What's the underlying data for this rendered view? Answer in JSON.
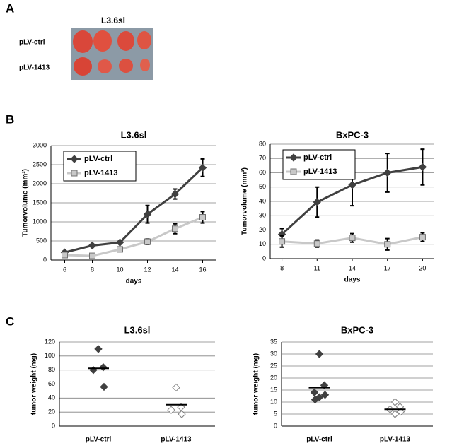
{
  "figure": {
    "panel_labels": [
      "A",
      "B",
      "C"
    ],
    "photo": {
      "title": "L3.6sl",
      "rows": [
        "pLV-ctrl",
        "pLV-1413"
      ]
    }
  },
  "chart_data": [
    {
      "type": "line",
      "title": "L3.6sl",
      "x_label": "days",
      "y_label": "Tumorvolume (mm³)",
      "x": [
        6,
        8,
        10,
        12,
        14,
        16
      ],
      "xlim": [
        5,
        17
      ],
      "xticks": [
        6,
        8,
        10,
        12,
        14,
        16
      ],
      "ylim": [
        0,
        3000
      ],
      "yticks": [
        0,
        500,
        1000,
        1500,
        2000,
        2500,
        3000
      ],
      "grid": true,
      "legend": "top-left",
      "series": [
        {
          "name": "pLV-ctrl",
          "color": "#404040",
          "marker": "diamond",
          "values": [
            200,
            380,
            460,
            1200,
            1730,
            2420
          ],
          "errors": [
            40,
            30,
            30,
            230,
            130,
            230
          ]
        },
        {
          "name": "pLV-1413",
          "color": "#c8c8c8",
          "marker": "square",
          "values": [
            130,
            110,
            280,
            480,
            820,
            1120
          ],
          "errors": [
            30,
            20,
            30,
            70,
            130,
            150
          ]
        }
      ]
    },
    {
      "type": "line",
      "title": "BxPC-3",
      "x_label": "days",
      "y_label": "Tumorvolume (mm³)",
      "x": [
        8,
        11,
        14,
        17,
        20
      ],
      "xlim": [
        7,
        21
      ],
      "xticks": [
        8,
        11,
        14,
        17,
        20
      ],
      "ylim": [
        0,
        80
      ],
      "yticks": [
        0,
        10,
        20,
        30,
        40,
        50,
        60,
        70,
        80
      ],
      "grid": true,
      "legend": "top-left",
      "series": [
        {
          "name": "pLV-ctrl",
          "color": "#404040",
          "marker": "diamond",
          "values": [
            17,
            39.5,
            51.5,
            60,
            64
          ],
          "errors": [
            4,
            10.5,
            14.5,
            13.5,
            12.5
          ]
        },
        {
          "name": "pLV-1413",
          "color": "#c8c8c8",
          "marker": "square",
          "values": [
            12,
            10.5,
            14.5,
            10,
            15
          ],
          "errors": [
            4,
            2.5,
            3,
            4,
            3
          ]
        }
      ]
    },
    {
      "type": "dot",
      "title": "L3.6sl",
      "y_label": "tumor weight (mg)",
      "categories": [
        "pLV-ctrl",
        "pLV-1413"
      ],
      "ylim": [
        0,
        120
      ],
      "yticks": [
        0,
        20,
        40,
        60,
        80,
        100,
        120
      ],
      "grid": true,
      "groups": [
        {
          "color": "#404040",
          "filled": true,
          "values": [
            110,
            84,
            80,
            56
          ],
          "mean": 82.5
        },
        {
          "color": "#808080",
          "filled": false,
          "values": [
            55,
            27,
            23,
            17
          ],
          "mean": 30.5
        }
      ]
    },
    {
      "type": "dot",
      "title": "BxPC-3",
      "y_label": "tumor weight (mg)",
      "categories": [
        "pLV-ctrl",
        "pLV-1413"
      ],
      "ylim": [
        0,
        35
      ],
      "yticks": [
        0,
        5,
        10,
        15,
        20,
        25,
        30,
        35
      ],
      "grid": true,
      "groups": [
        {
          "color": "#404040",
          "filled": true,
          "values": [
            30,
            17,
            14,
            13,
            12,
            11
          ],
          "mean": 16
        },
        {
          "color": "#808080",
          "filled": false,
          "values": [
            10,
            8,
            7,
            6,
            5
          ],
          "mean": 7
        }
      ]
    }
  ]
}
